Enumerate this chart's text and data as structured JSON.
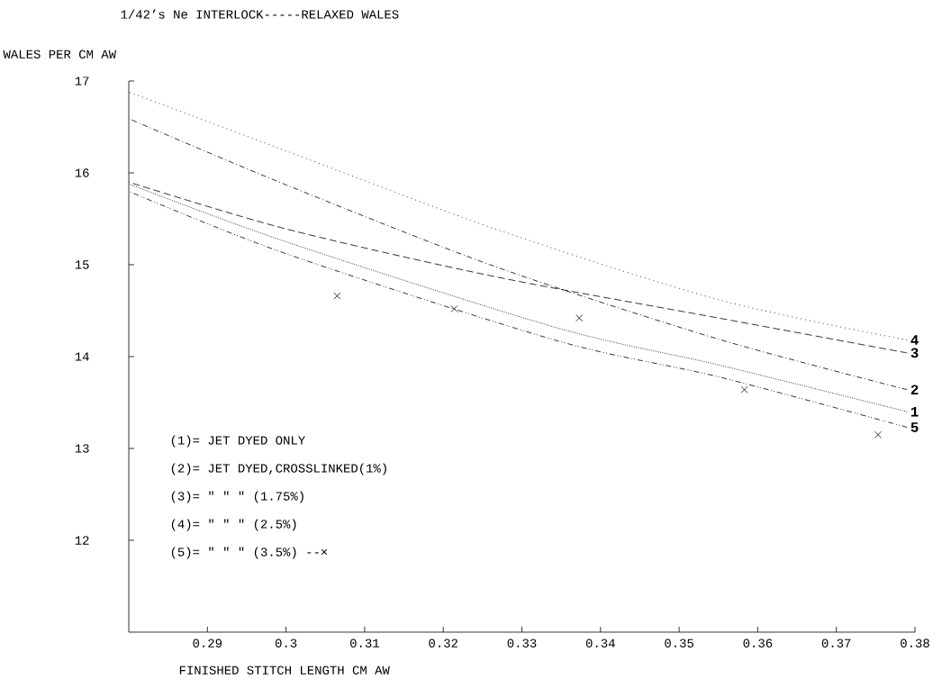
{
  "chart_data": {
    "type": "line",
    "title": "1/42’s Ne INTERLOCK-----RELAXED WALES",
    "xlabel": "FINISHED STITCH LENGTH CM AW",
    "ylabel": "WALES PER CM AW",
    "xlim": [
      0.28,
      0.38
    ],
    "ylim": [
      11,
      17
    ],
    "xticks": [
      0.29,
      0.3,
      0.31,
      0.32,
      0.33,
      0.34,
      0.35,
      0.36,
      0.37,
      0.38
    ],
    "yticks": [
      12,
      13,
      14,
      15,
      16,
      17
    ],
    "grid": false,
    "marker": "none",
    "series": [
      {
        "name": "4",
        "color": "#000000",
        "line_style": "dotted",
        "x": [
          0.28,
          0.3,
          0.3266,
          0.355,
          0.379
        ],
        "values": [
          16.88,
          16.24,
          15.39,
          14.62,
          14.18
        ]
      },
      {
        "name": "3",
        "color": "#000000",
        "line_style": "dashed",
        "x": [
          0.28,
          0.3,
          0.3266,
          0.355,
          0.379
        ],
        "values": [
          15.9,
          15.39,
          14.87,
          14.42,
          14.04
        ]
      },
      {
        "name": "2",
        "color": "#000000",
        "line_style": "dashdot",
        "x": [
          0.28,
          0.3,
          0.3266,
          0.355,
          0.379
        ],
        "values": [
          16.59,
          15.87,
          14.98,
          14.19,
          13.64
        ]
      },
      {
        "name": "1",
        "color": "#000000",
        "line_style": "densely dotted",
        "x": [
          0.28,
          0.3,
          0.3346,
          0.355,
          0.379
        ],
        "values": [
          15.88,
          15.25,
          14.31,
          13.91,
          13.4
        ]
      },
      {
        "name": "5",
        "color": "#000000",
        "line_style": "dashdotdot",
        "x": [
          0.28,
          0.3,
          0.3346,
          0.355,
          0.379
        ],
        "values": [
          15.8,
          15.12,
          14.17,
          13.78,
          13.23
        ]
      },
      {
        "type": "scatter",
        "color": "#000000",
        "marker": "cross",
        "x": [
          0.3065,
          0.3214,
          0.3373,
          0.3583,
          0.3753
        ],
        "values": [
          14.66,
          14.52,
          14.42,
          13.64,
          13.15
        ]
      }
    ],
    "annotations": [
      "(1)= JET DYED ONLY",
      "(2)= JET DYED,CROSSLINKED(1%)",
      "(3)= \"   \"   \"   (1.75%)",
      "(4)= \"   \"   \"   (2.5%)",
      "(5)= \"   \"   \"   (3.5%) --×"
    ]
  }
}
